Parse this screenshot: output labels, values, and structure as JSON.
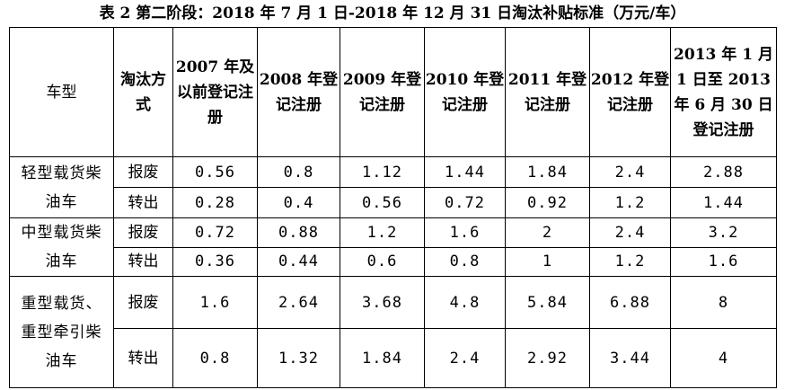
{
  "caption": "表 2 第二阶段：2018 年 7 月 1 日-2018 年 12 月 31 日淘汰补贴标准（万元/车）",
  "header": {
    "vehicle_type": "车型",
    "mode": "淘汰方式",
    "years": [
      "2007 年及以前登记注册",
      "2008 年登记注册",
      "2009 年登记注册",
      "2010 年登记注册",
      "2011 年登记注册",
      "2012 年登记注册",
      "2013 年 1 月 1 日至 2013 年 6 月 30 日登记注册"
    ]
  },
  "groups": [
    {
      "type": "轻型载货柴油车",
      "rows": [
        {
          "mode": "报废",
          "values": [
            "0.56",
            "0.8",
            "1.12",
            "1.44",
            "1.84",
            "2.4",
            "2.88"
          ]
        },
        {
          "mode": "转出",
          "values": [
            "0.28",
            "0.4",
            "0.56",
            "0.72",
            "0.92",
            "1.2",
            "1.44"
          ]
        }
      ]
    },
    {
      "type": "中型载货柴油车",
      "rows": [
        {
          "mode": "报废",
          "values": [
            "0.72",
            "0.88",
            "1.2",
            "1.6",
            "2",
            "2.4",
            "3.2"
          ]
        },
        {
          "mode": "转出",
          "values": [
            "0.36",
            "0.44",
            "0.6",
            "0.8",
            "1",
            "1.2",
            "1.6"
          ]
        }
      ]
    },
    {
      "type": "重型载货、重型牵引柴油车",
      "rows": [
        {
          "mode": "报废",
          "values": [
            "1.6",
            "2.64",
            "3.68",
            "4.8",
            "5.84",
            "6.88",
            "8"
          ]
        },
        {
          "mode": "转出",
          "values": [
            "0.8",
            "1.32",
            "1.84",
            "2.4",
            "2.92",
            "3.44",
            "4"
          ]
        }
      ]
    }
  ]
}
